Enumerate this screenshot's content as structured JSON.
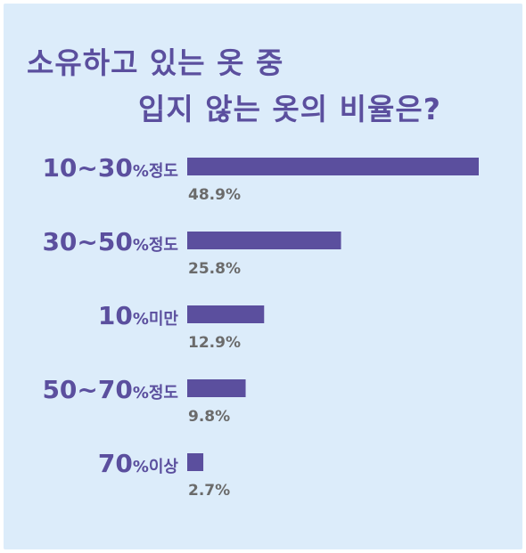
{
  "title_lines": [
    "소유하고 있는 옷 중",
    "입지 않는 옷의 비율은?"
  ],
  "colors": {
    "background": "#dcecfa",
    "bar": "#5b4f9e",
    "title": "#5b4f9e",
    "category_text": "#5b4f9e",
    "value_text": "#6b6b6b"
  },
  "chart_data": {
    "type": "bar",
    "orientation": "horizontal",
    "title": "소유하고 있는 옷 중 입지 않는 옷의 비율은?",
    "categories": [
      {
        "range": "10~30",
        "percent_sign": "%",
        "suffix": "정도"
      },
      {
        "range": "30~50",
        "percent_sign": "%",
        "suffix": "정도"
      },
      {
        "range": "10",
        "percent_sign": "%",
        "suffix": "미만"
      },
      {
        "range": "50~70",
        "percent_sign": "%",
        "suffix": "정도"
      },
      {
        "range": "70",
        "percent_sign": "%",
        "suffix": "이상"
      }
    ],
    "category_labels": [
      "10~30%정도",
      "30~50%정도",
      "10%미만",
      "50~70%정도",
      "70%이상"
    ],
    "values": [
      48.9,
      25.8,
      12.9,
      9.8,
      2.7
    ],
    "value_labels": [
      "48.9%",
      "25.8%",
      "12.9%",
      "9.8%",
      "2.7%"
    ],
    "unit": "%",
    "xlim": [
      0,
      48.9
    ],
    "grid": false,
    "legend": "none"
  }
}
